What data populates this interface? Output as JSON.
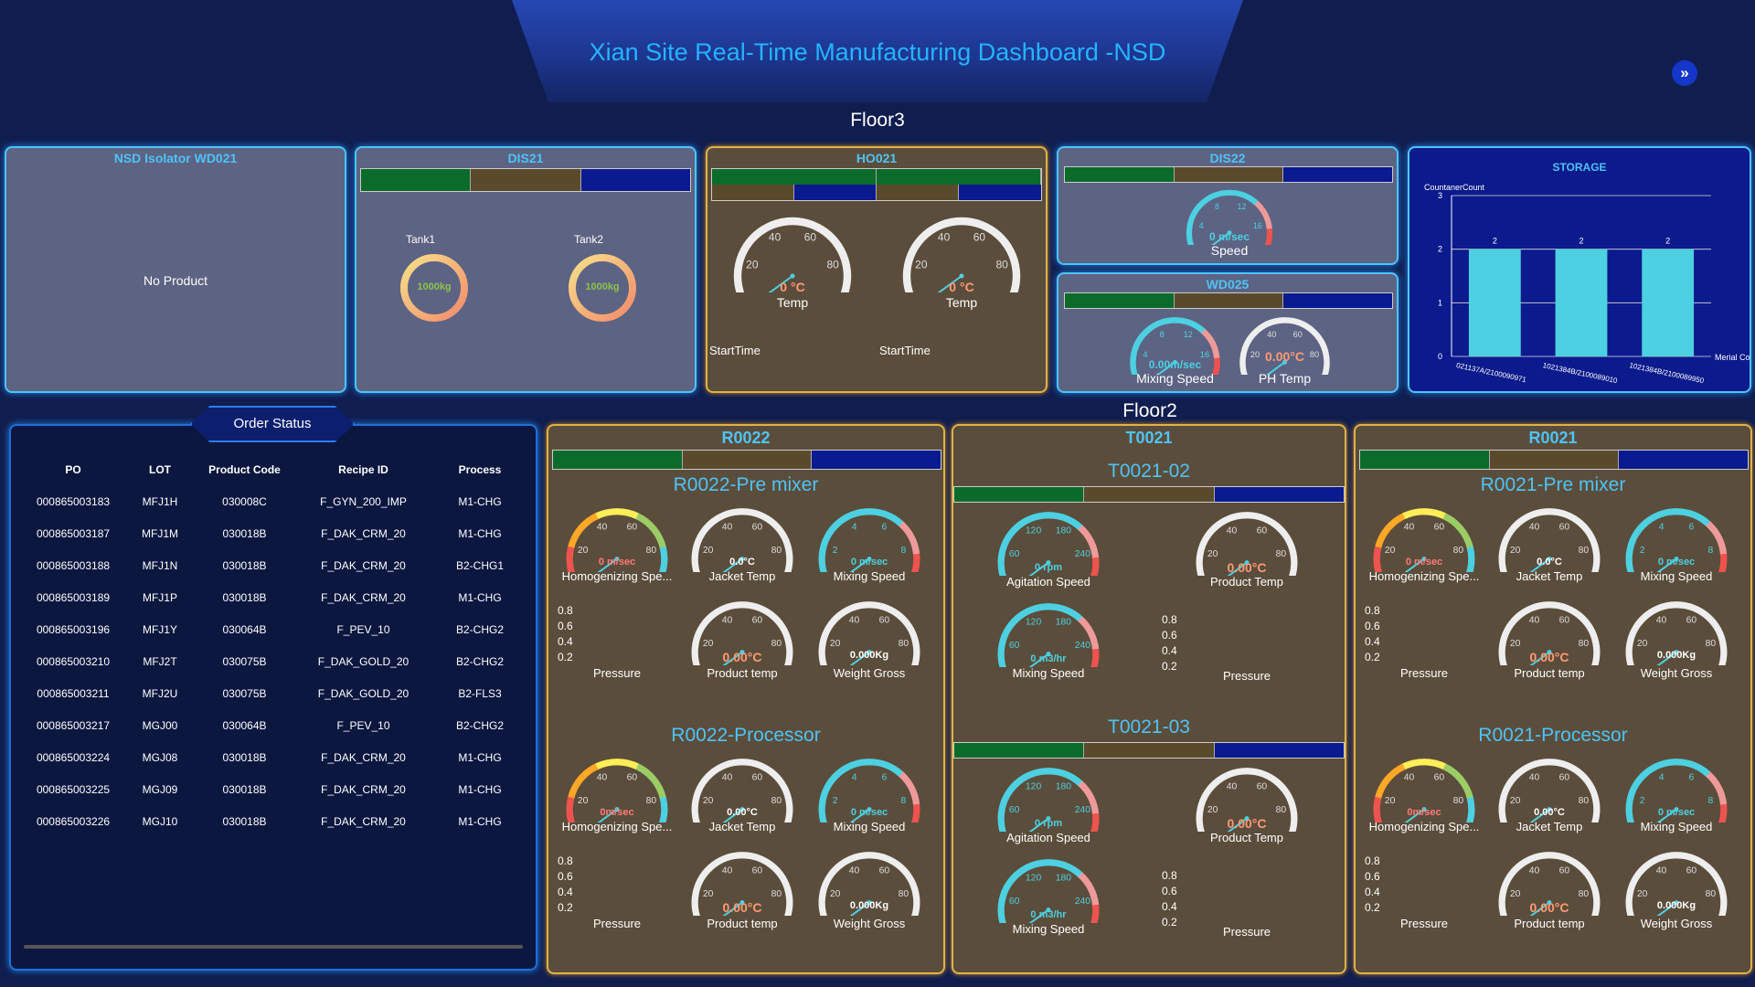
{
  "header": {
    "title": "Xian Site Real-Time Manufacturing Dashboard -NSD",
    "nav_icon": "double-chevron-right-icon"
  },
  "floors": {
    "floor3": "Floor3",
    "floor2": "Floor2"
  },
  "floor3": {
    "isolator": {
      "title": "NSD Isolator WD021",
      "status": "No Product"
    },
    "dis21": {
      "title": "DIS21",
      "tank1_label": "Tank1",
      "tank1_value": "1000kg",
      "tank2_label": "Tank2",
      "tank2_value": "1000kg"
    },
    "ho021": {
      "title": "HO021",
      "gauge1_value": "0 °C",
      "gauge1_label": "Temp",
      "gauge2_value": "0 °C",
      "gauge2_label": "Temp",
      "start1": "StartTime",
      "start2": "StartTime"
    },
    "dis22": {
      "title": "DIS22",
      "value": "0 m/sec",
      "label": "Speed"
    },
    "wd025": {
      "title": "WD025",
      "mix_value": "0.00m/sec",
      "mix_label": "Mixing Speed",
      "ph_value": "0.00°C",
      "ph_label": "PH Temp"
    },
    "storage": {
      "title": "STORAGE"
    }
  },
  "chart_data": {
    "type": "bar",
    "title": "STORAGE",
    "ylabel": "CountanerCount",
    "xlabel": "Merial Co",
    "categories": [
      "021137A/2100090971",
      "1021384B/2100089010",
      "1021384B/2100089950"
    ],
    "values": [
      2,
      2,
      2
    ],
    "ylim": [
      0,
      3
    ],
    "yticks": [
      0,
      1,
      2,
      3
    ],
    "grid": true
  },
  "order_status": {
    "title": "Order Status",
    "columns": [
      "PO",
      "LOT",
      "Product Code",
      "Recipe ID",
      "Process"
    ],
    "rows": [
      [
        "000865003183",
        "MFJ1H",
        "030008C",
        "F_GYN_200_IMP",
        "M1-CHG"
      ],
      [
        "000865003187",
        "MFJ1M",
        "030018B",
        "F_DAK_CRM_20",
        "M1-CHG"
      ],
      [
        "000865003188",
        "MFJ1N",
        "030018B",
        "F_DAK_CRM_20",
        "B2-CHG1"
      ],
      [
        "000865003189",
        "MFJ1P",
        "030018B",
        "F_DAK_CRM_20",
        "M1-CHG"
      ],
      [
        "000865003196",
        "MFJ1Y",
        "030064B",
        "F_PEV_10",
        "B2-CHG2"
      ],
      [
        "000865003210",
        "MFJ2T",
        "030075B",
        "F_DAK_GOLD_20",
        "B2-CHG2"
      ],
      [
        "000865003211",
        "MFJ2U",
        "030075B",
        "F_DAK_GOLD_20",
        "B2-FLS3"
      ],
      [
        "000865003217",
        "MGJ00",
        "030064B",
        "F_PEV_10",
        "B2-CHG2"
      ],
      [
        "000865003224",
        "MGJ08",
        "030018B",
        "F_DAK_CRM_20",
        "M1-CHG"
      ],
      [
        "000865003225",
        "MGJ09",
        "030018B",
        "F_DAK_CRM_20",
        "M1-CHG"
      ],
      [
        "000865003226",
        "MGJ10",
        "030018B",
        "F_DAK_CRM_20",
        "M1-CHG"
      ]
    ]
  },
  "floor2": {
    "r0022": {
      "title": "R0022",
      "sub1": "R0022-Pre mixer",
      "sub2": "R0022-Processor"
    },
    "t0021": {
      "title": "T0021",
      "sub1": "T0021-02",
      "sub2": "T0021-03"
    },
    "r0021": {
      "title": "R0021",
      "sub1": "R0021-Pre mixer",
      "sub2": "R0021-Processor"
    },
    "labels": {
      "homog": "Homogenizing Spe...",
      "jacket": "Jacket Temp",
      "mixing": "Mixing Speed",
      "pressure": "Pressure",
      "product_temp": "Product temp",
      "weight": "Weight Gross",
      "agitation": "Agitation Speed",
      "product_temp_cap": "Product Temp"
    },
    "values": {
      "homog1": "0 m/sec",
      "homog2": "0m/sec",
      "jacket": "0.0°C",
      "jacket2": "0.00°C",
      "mix": "0 m/sec",
      "prod": "0.00°C",
      "weight": "0.000Kg",
      "rpm": "0 rpm",
      "m3": "0 m3/hr"
    },
    "pressure_ticks": [
      "0.8",
      "0.6",
      "0.4",
      "0.2"
    ]
  },
  "colors": {
    "accent": "#25b3ff",
    "panel_border": "#4fc3f7",
    "gold_border": "#e0b248",
    "bar": "#4dd0e1"
  }
}
